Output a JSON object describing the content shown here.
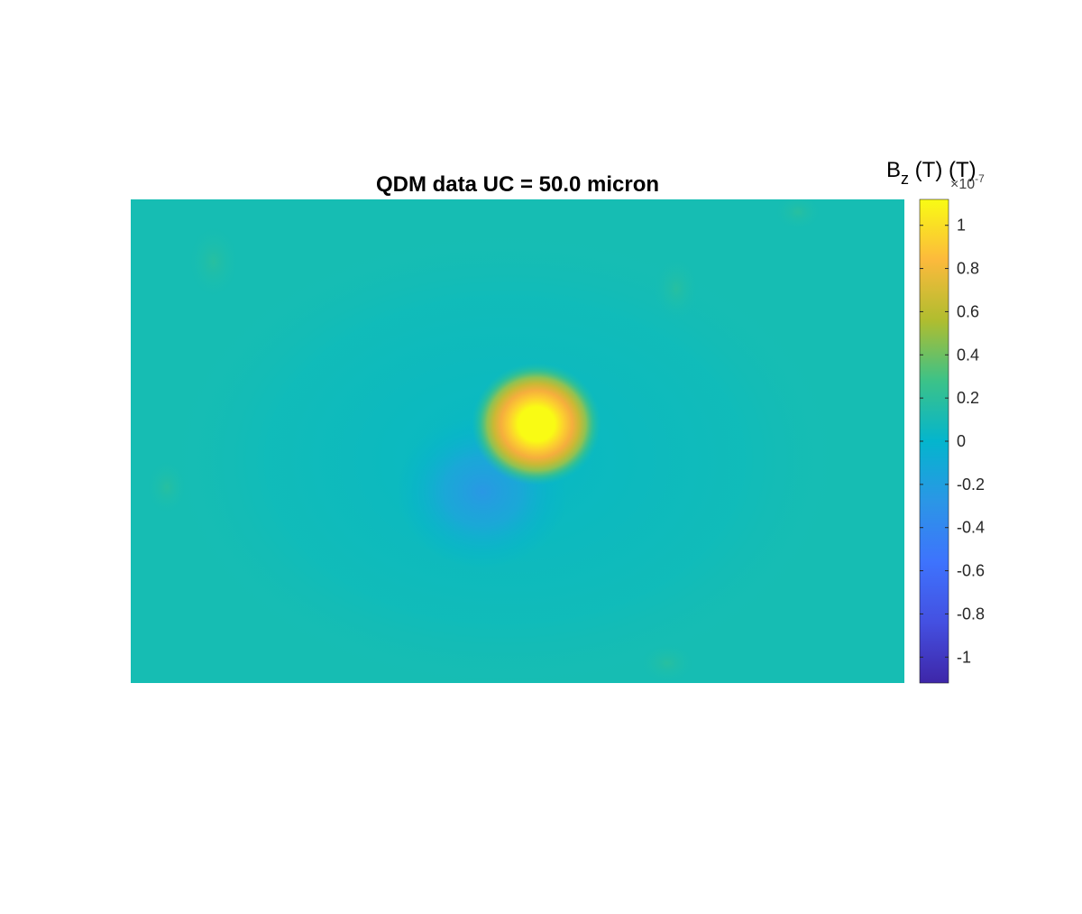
{
  "chart_data": {
    "type": "heatmap",
    "title": "QDM data UC = 50.0 micron",
    "xlabel": "",
    "ylabel": "",
    "colormap": "parula",
    "axes_visible": false,
    "grid": false,
    "colorbar": {
      "label_main": "B",
      "label_sub": "z",
      "label_rest": " (T) (T)",
      "exponent_prefix": "×10",
      "exponent_power": "-7",
      "clim": [
        -1.12,
        1.12
      ],
      "ticks": [
        1,
        0.8,
        0.6,
        0.4,
        0.2,
        0,
        -0.2,
        -0.4,
        -0.6,
        -0.8,
        -1
      ],
      "tick_labels": [
        "1",
        "0.8",
        "0.6",
        "0.4",
        "0.2",
        "0",
        "-0.2",
        "-0.4",
        "-0.6",
        "-0.8",
        "-1"
      ],
      "placement": "right"
    },
    "background_value": 0.08,
    "features": [
      {
        "kind": "positive-peak",
        "value": 1.12,
        "x": 0.52,
        "y": 0.47
      },
      {
        "kind": "negative-lobe",
        "value": -0.3,
        "x": 0.45,
        "y": 0.57
      }
    ]
  }
}
